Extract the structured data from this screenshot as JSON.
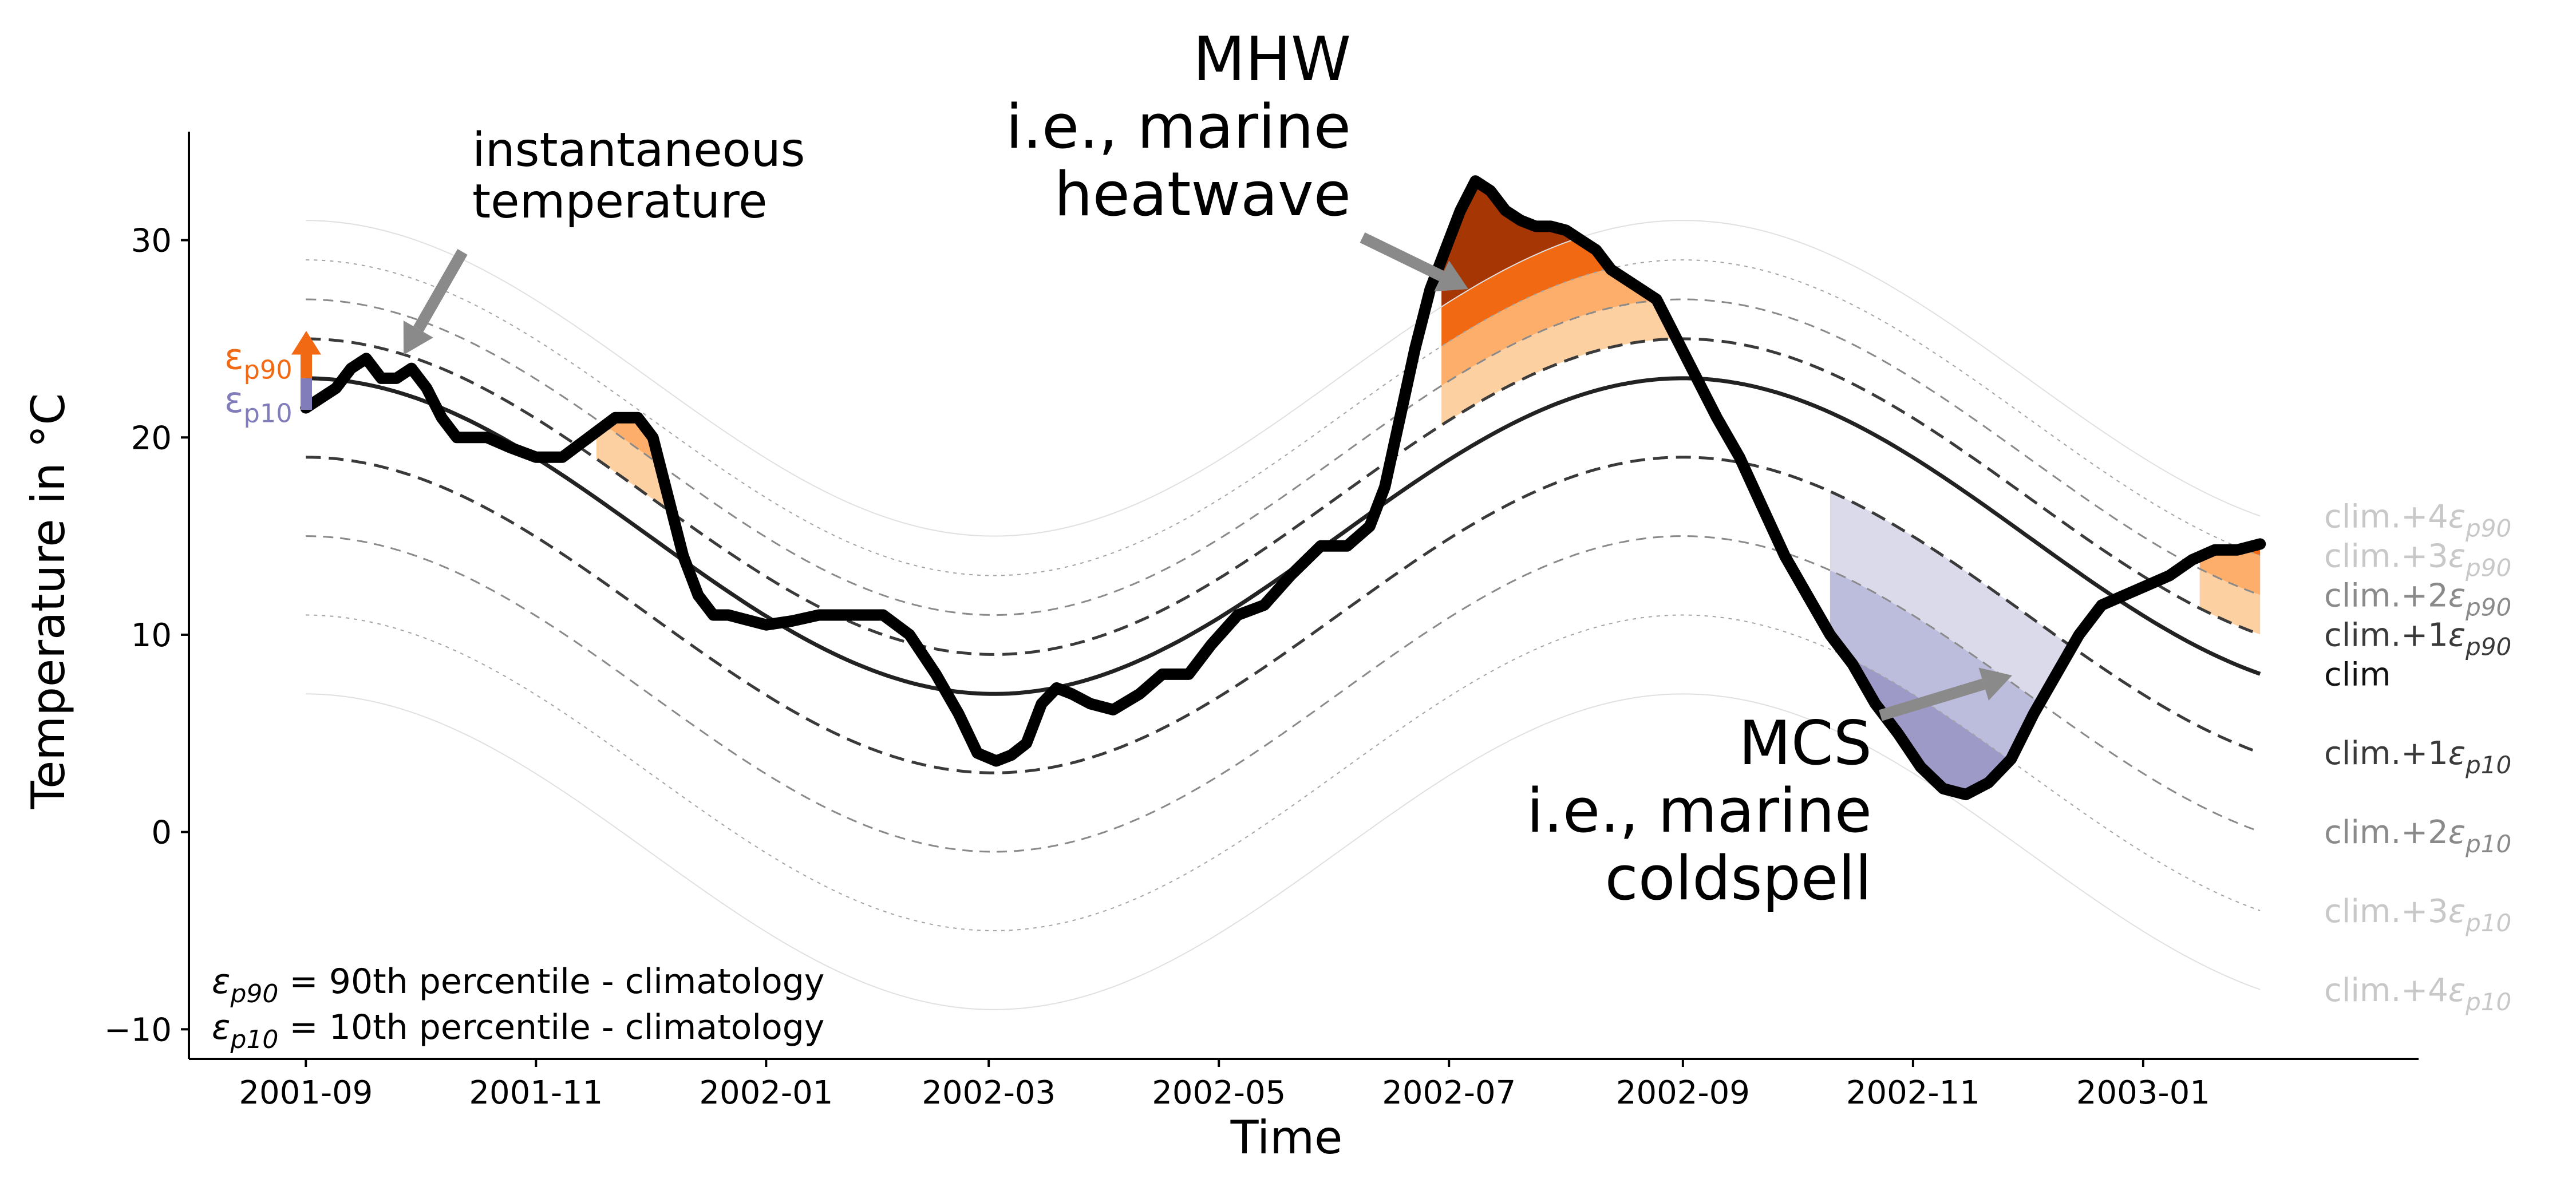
{
  "chart_data": {
    "type": "line",
    "title": "",
    "xlabel": "Time",
    "ylabel": "Temperature in °C",
    "x_range": [
      "2001-08-01",
      "2003-03-15"
    ],
    "x_domain": [
      "2001-09-01",
      "2003-02-01"
    ],
    "ylim": [
      -11.5,
      35.5
    ],
    "x_ticks": [
      "2001-09",
      "2001-11",
      "2002-01",
      "2002-03",
      "2002-05",
      "2002-07",
      "2002-09",
      "2002-11",
      "2003-01"
    ],
    "y_ticks": [
      -10,
      0,
      10,
      20,
      30
    ],
    "grid": false,
    "climatology": {
      "mean": 15,
      "amplitude": 8,
      "peak_date": "2002-09-01",
      "epsilon_p90": 2,
      "epsilon_p10": -4
    },
    "reference_lines": [
      {
        "label_base": "clim.+4",
        "sub": "p90",
        "k": 4,
        "eps": 2,
        "color": "#e0e0e0",
        "dash": ""
      },
      {
        "label_base": "clim.+3",
        "sub": "p90",
        "k": 3,
        "eps": 2,
        "color": "#a4a4a4",
        "dash": "6,8"
      },
      {
        "label_base": "clim.+2",
        "sub": "p90",
        "k": 2,
        "eps": 2,
        "color": "#8a8a8a",
        "dash": "18,12"
      },
      {
        "label_base": "clim.+1",
        "sub": "p90",
        "k": 1,
        "eps": 2,
        "color": "#3a3a3a",
        "dash": "26,14"
      },
      {
        "label_base": "clim",
        "sub": "",
        "k": 0,
        "eps": 0,
        "color": "#222222",
        "dash": ""
      },
      {
        "label_base": "clim.+1",
        "sub": "p10",
        "k": 1,
        "eps": -4,
        "color": "#3a3a3a",
        "dash": "26,14"
      },
      {
        "label_base": "clim.+2",
        "sub": "p10",
        "k": 2,
        "eps": -4,
        "color": "#8a8a8a",
        "dash": "18,12"
      },
      {
        "label_base": "clim.+3",
        "sub": "p10",
        "k": 3,
        "eps": -4,
        "color": "#a4a4a4",
        "dash": "6,8"
      },
      {
        "label_base": "clim.+4",
        "sub": "p10",
        "k": 4,
        "eps": -4,
        "color": "#e0e0e0",
        "dash": ""
      }
    ],
    "series": [
      {
        "x": [
          "2001-09-01",
          "2001-09-05",
          "2001-09-09",
          "2001-09-13",
          "2001-09-17",
          "2001-09-21",
          "2001-09-25",
          "2001-09-29",
          "2001-10-03",
          "2001-10-07",
          "2001-10-11",
          "2001-10-15",
          "2001-10-19",
          "2001-10-25",
          "2001-11-01",
          "2001-11-08",
          "2001-11-15",
          "2001-11-22",
          "2001-11-28",
          "2001-12-02",
          "2001-12-06",
          "2001-12-10",
          "2001-12-14",
          "2001-12-18",
          "2001-12-22",
          "2001-12-26",
          "2002-01-01",
          "2002-01-08",
          "2002-01-15",
          "2002-01-22",
          "2002-02-01",
          "2002-02-08",
          "2002-02-15",
          "2002-02-21",
          "2002-02-26",
          "2002-03-03",
          "2002-03-07",
          "2002-03-11",
          "2002-03-15",
          "2002-03-19",
          "2002-03-23",
          "2002-03-28",
          "2002-04-03",
          "2002-04-10",
          "2002-04-16",
          "2002-04-23",
          "2002-04-29",
          "2002-05-06",
          "2002-05-13",
          "2002-05-20",
          "2002-05-28",
          "2002-06-04",
          "2002-06-10",
          "2002-06-14",
          "2002-06-18",
          "2002-06-22",
          "2002-06-26",
          "2002-06-30",
          "2002-07-04",
          "2002-07-08",
          "2002-07-12",
          "2002-07-16",
          "2002-07-20",
          "2002-07-24",
          "2002-07-28",
          "2002-08-01",
          "2002-08-05",
          "2002-08-09",
          "2002-08-13",
          "2002-08-17",
          "2002-08-21",
          "2002-08-25",
          "2002-08-29",
          "2002-09-02",
          "2002-09-06",
          "2002-09-10",
          "2002-09-16",
          "2002-09-22",
          "2002-09-28",
          "2002-10-04",
          "2002-10-10",
          "2002-10-16",
          "2002-10-22",
          "2002-10-28",
          "2002-11-03",
          "2002-11-09",
          "2002-11-15",
          "2002-11-21",
          "2002-11-27",
          "2002-12-03",
          "2002-12-09",
          "2002-12-15",
          "2002-12-21",
          "2002-12-27",
          "2003-01-02",
          "2003-01-08",
          "2003-01-14",
          "2003-01-20",
          "2003-01-26",
          "2003-02-01"
        ],
        "y": [
          21.5,
          22,
          22.5,
          23.5,
          24,
          23,
          23,
          23.5,
          22.5,
          21,
          20,
          20,
          20,
          19.5,
          19,
          19,
          20,
          21,
          21,
          20,
          17,
          14,
          12,
          11,
          11,
          10.8,
          10.5,
          10.7,
          11,
          11,
          11,
          10,
          8,
          6,
          4,
          3.6,
          3.9,
          4.5,
          6.5,
          7.3,
          7,
          6.5,
          6.2,
          7,
          8,
          8,
          9.5,
          11,
          11.5,
          13,
          14.5,
          14.5,
          15.5,
          17.5,
          21,
          24.5,
          27.5,
          29.5,
          31.5,
          33,
          32.5,
          31.5,
          31,
          30.7,
          30.7,
          30.5,
          30,
          29.5,
          28.5,
          28,
          27.5,
          27,
          25.5,
          24,
          22.5,
          21,
          19,
          16.5,
          14,
          12,
          10,
          8.5,
          6.5,
          5,
          3.3,
          2.2,
          1.9,
          2.5,
          3.7,
          6,
          8,
          10,
          11.5,
          12,
          12.5,
          13,
          13.8,
          14.3,
          14.3,
          14.6
        ]
      }
    ],
    "fill_colors_warm": [
      "#fdd0a2",
      "#fdae6b",
      "#f16913",
      "#a63603"
    ],
    "fill_colors_cold": [
      "#dadaeb",
      "#bcbddc",
      "#9e9ac8",
      "#807dba"
    ],
    "mhw_fill_range": [
      "2002-06-29",
      "2002-09-22"
    ],
    "small_warm_fill_range": [
      "2001-11-17",
      "2001-12-12"
    ],
    "end_warm_fill_range": [
      "2003-01-16",
      "2003-02-01"
    ],
    "mcs_fill_range": [
      "2002-10-10",
      "2002-12-28"
    ],
    "annotations": {
      "instantaneous": [
        "instantaneous",
        "temperature"
      ],
      "mhw": [
        "MHW",
        "i.e., marine",
        "heatwave"
      ],
      "mcs": [
        "MCS",
        "i.e., marine",
        "coldspell"
      ],
      "eps_p90_symbol": "ε",
      "eps_p90_sub": "p90",
      "eps_p10_symbol": "ε",
      "eps_p10_sub": "p10",
      "eps_color_p90": "#f16913",
      "eps_color_p10": "#807dba",
      "arrow_color": "#8a8a8a"
    },
    "legend_text": [
      {
        "symbol": "ε",
        "sub": "p90",
        "rest": " = 90th percentile - climatology"
      },
      {
        "symbol": "ε",
        "sub": "p10",
        "rest": " = 10th percentile - climatology"
      }
    ]
  }
}
